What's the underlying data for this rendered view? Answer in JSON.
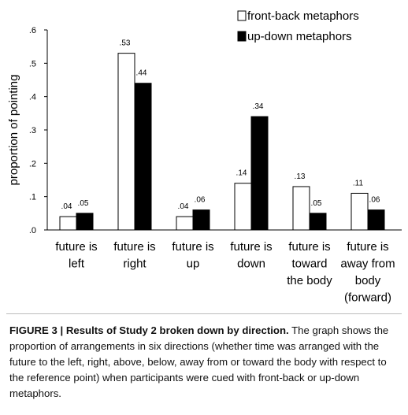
{
  "chart_data": {
    "type": "bar",
    "y_label": "proportion of pointing",
    "categories": [
      [
        "future is",
        "left"
      ],
      [
        "future is",
        "right"
      ],
      [
        "future is",
        "up"
      ],
      [
        "future is",
        "down"
      ],
      [
        "future is",
        "toward",
        "the body"
      ],
      [
        "future is",
        "away from",
        "body",
        "(forward)"
      ]
    ],
    "series": [
      {
        "name": "front-back metaphors",
        "color": "#ffffff",
        "values": [
          0.04,
          0.53,
          0.04,
          0.14,
          0.13,
          0.11
        ],
        "value_labels": [
          ".04",
          ".53",
          ".04",
          ".14",
          ".13",
          ".11"
        ]
      },
      {
        "name": "up-down metaphors",
        "color": "#000000",
        "values": [
          0.05,
          0.44,
          0.06,
          0.34,
          0.05,
          0.06
        ],
        "value_labels": [
          ".05",
          ".44",
          ".06",
          ".34",
          ".05",
          ".06"
        ]
      }
    ],
    "ylim": [
      0,
      0.6
    ],
    "yticks": [
      {
        "value": 0,
        "label": ".0"
      },
      {
        "value": 0.1,
        "label": ".1"
      },
      {
        "value": 0.2,
        "label": ".2"
      },
      {
        "value": 0.3,
        "label": ".3"
      },
      {
        "value": 0.4,
        "label": ".4"
      },
      {
        "value": 0.5,
        "label": ".5"
      },
      {
        "value": 0.6,
        "label": ".6"
      }
    ],
    "legend": "top-right"
  },
  "caption": {
    "label": "FIGURE 3 | Results of Study 2 broken down by direction.",
    "text": "The graph shows the proportion of arrangements in six directions (whether time was arranged with the future to the left, right, above, below, away from or toward the body with respect to the reference point) when participants were cued with front-back or up-down metaphors."
  }
}
